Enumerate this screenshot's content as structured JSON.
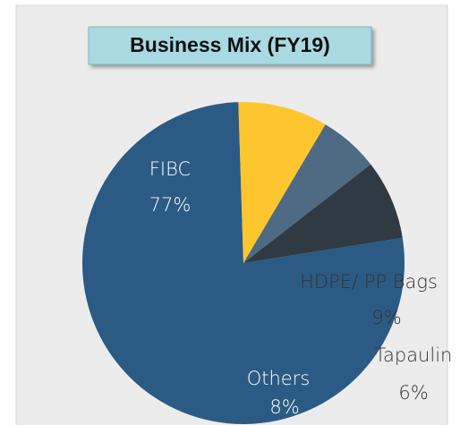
{
  "chart_data": {
    "type": "pie",
    "title": "Business Mix (FY19)",
    "categories": [
      "FIBC",
      "HDPE/ PP Bags",
      "Tapaulin",
      "Others"
    ],
    "values": [
      77,
      9,
      6,
      8
    ],
    "value_labels": [
      "77%",
      "9%",
      "6%",
      "8%"
    ],
    "colors": [
      "#2b5b84",
      "#fec62e",
      "#4f6a83",
      "#2f3a42"
    ]
  }
}
